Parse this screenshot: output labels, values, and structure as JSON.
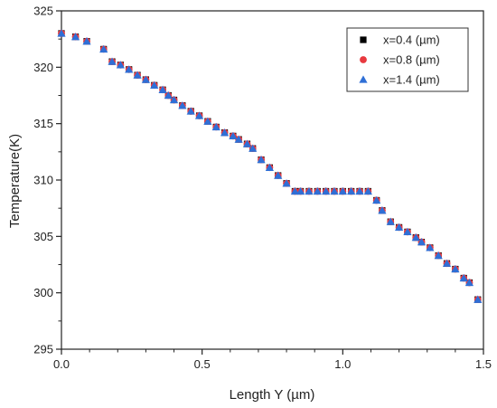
{
  "chart_data": {
    "type": "scatter",
    "xlabel": "Length Y (µm)",
    "ylabel": "Temperature(K)",
    "xlim": [
      0,
      1.5
    ],
    "ylim": [
      295,
      325
    ],
    "x_ticks": [
      0.0,
      0.5,
      1.0,
      1.5
    ],
    "x_tick_labels": [
      "0.0",
      "0.5",
      "1.0",
      "1.5"
    ],
    "y_ticks": [
      295,
      300,
      305,
      310,
      315,
      320,
      325
    ],
    "y_tick_labels": [
      "295",
      "300",
      "305",
      "310",
      "315",
      "320",
      "325"
    ],
    "grid": false,
    "legend_position": "top-right",
    "x": [
      0.0,
      0.05,
      0.09,
      0.15,
      0.18,
      0.21,
      0.24,
      0.27,
      0.3,
      0.33,
      0.36,
      0.38,
      0.4,
      0.43,
      0.46,
      0.49,
      0.52,
      0.55,
      0.58,
      0.61,
      0.63,
      0.66,
      0.68,
      0.71,
      0.74,
      0.77,
      0.8,
      0.83,
      0.85,
      0.88,
      0.91,
      0.94,
      0.97,
      1.0,
      1.03,
      1.06,
      1.09,
      1.12,
      1.14,
      1.17,
      1.2,
      1.23,
      1.26,
      1.28,
      1.31,
      1.34,
      1.37,
      1.4,
      1.43,
      1.45,
      1.48
    ],
    "series": [
      {
        "name": "x=0.4 (µm)",
        "marker": "square",
        "color": "#000000",
        "values": [
          323.0,
          322.7,
          322.3,
          321.6,
          320.5,
          320.2,
          319.8,
          319.3,
          318.9,
          318.4,
          318.0,
          317.5,
          317.1,
          316.6,
          316.1,
          315.7,
          315.2,
          314.7,
          314.2,
          313.9,
          313.6,
          313.2,
          312.8,
          311.8,
          311.1,
          310.4,
          309.7,
          309.0,
          309.0,
          309.0,
          309.0,
          309.0,
          309.0,
          309.0,
          309.0,
          309.0,
          309.0,
          308.2,
          307.3,
          306.3,
          305.8,
          305.4,
          304.9,
          304.5,
          304.0,
          303.3,
          302.6,
          302.1,
          301.3,
          300.9,
          299.4
        ]
      },
      {
        "name": "x=0.8 (µm)",
        "marker": "circle",
        "color": "#e8393f",
        "values": [
          323.0,
          322.7,
          322.3,
          321.6,
          320.5,
          320.2,
          319.8,
          319.3,
          318.9,
          318.4,
          318.0,
          317.5,
          317.1,
          316.6,
          316.1,
          315.7,
          315.2,
          314.7,
          314.2,
          313.9,
          313.6,
          313.2,
          312.8,
          311.8,
          311.1,
          310.4,
          309.7,
          309.0,
          309.0,
          309.0,
          309.0,
          309.0,
          309.0,
          309.0,
          309.0,
          309.0,
          309.0,
          308.2,
          307.3,
          306.3,
          305.8,
          305.4,
          304.9,
          304.5,
          304.0,
          303.3,
          302.6,
          302.1,
          301.3,
          300.9,
          299.4
        ]
      },
      {
        "name": "x=1.4 (µm)",
        "marker": "triangle",
        "color": "#2f6fd6",
        "values": [
          323.0,
          322.7,
          322.3,
          321.6,
          320.5,
          320.2,
          319.8,
          319.3,
          318.9,
          318.4,
          318.0,
          317.5,
          317.1,
          316.6,
          316.1,
          315.7,
          315.2,
          314.7,
          314.2,
          313.9,
          313.6,
          313.2,
          312.8,
          311.8,
          311.1,
          310.4,
          309.7,
          309.0,
          309.0,
          309.0,
          309.0,
          309.0,
          309.0,
          309.0,
          309.0,
          309.0,
          309.0,
          308.2,
          307.3,
          306.3,
          305.8,
          305.4,
          304.9,
          304.5,
          304.0,
          303.3,
          302.6,
          302.1,
          301.3,
          300.9,
          299.4
        ]
      }
    ]
  }
}
